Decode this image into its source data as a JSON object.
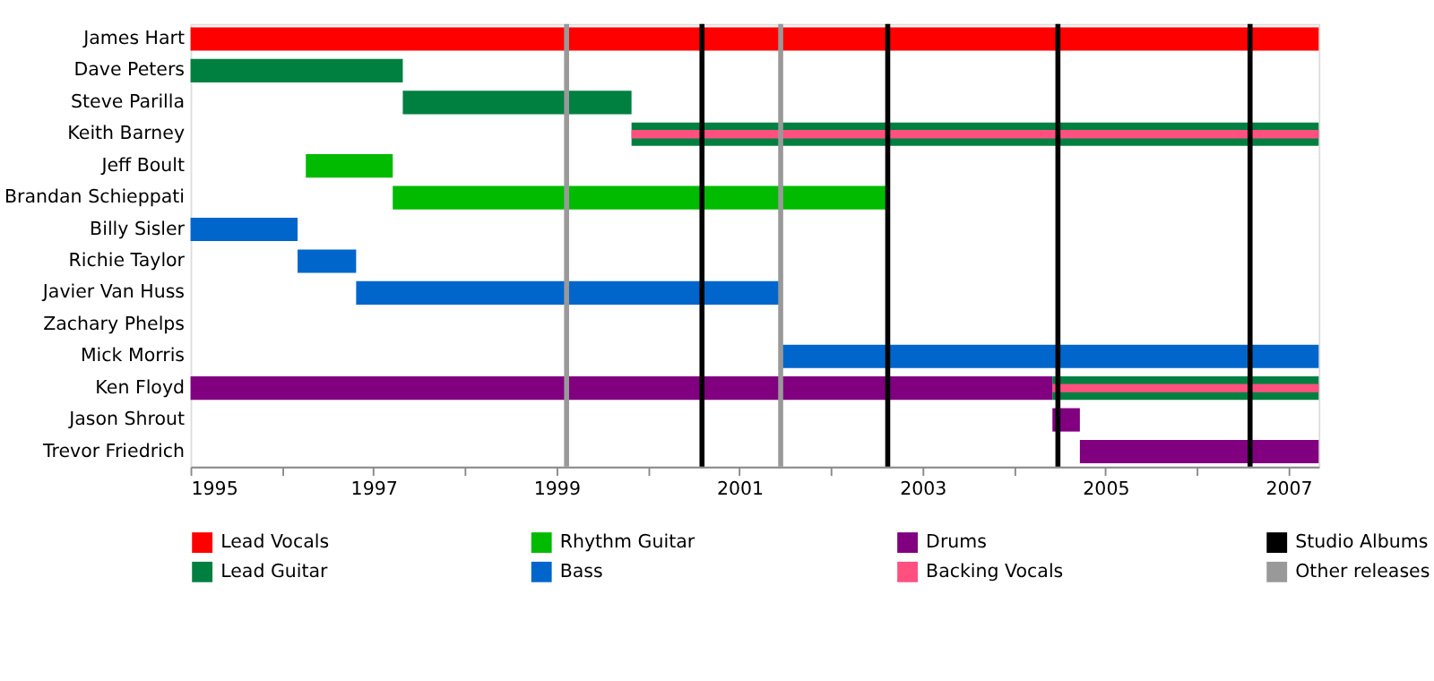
{
  "chart_data": {
    "type": "bar",
    "orientation": "horizontal",
    "categories": [
      "James Hart",
      "Dave Peters",
      "Steve Parilla",
      "Keith Barney",
      "Jeff Boult",
      "Brandan Schieppati",
      "Billy Sisler",
      "Richie Taylor",
      "Javier Van Huss",
      "Zachary Phelps",
      "Mick Morris",
      "Ken Floyd",
      "Jason Shrout",
      "Trevor Friedrich"
    ],
    "series": [
      {
        "name": "Lead Vocals",
        "color": "#ff0000",
        "base": [
          1995,
          null,
          null,
          null,
          null,
          null,
          null,
          null,
          null,
          null,
          null,
          null,
          null,
          null
        ],
        "values": [
          12.33,
          null,
          null,
          null,
          null,
          null,
          null,
          null,
          null,
          null,
          null,
          null,
          null,
          null
        ]
      },
      {
        "name": "Lead Guitar",
        "color": "#008040",
        "base": [
          null,
          1995,
          1997.32,
          1999.82,
          null,
          null,
          null,
          null,
          null,
          null,
          null,
          2004.42,
          null,
          null
        ],
        "values": [
          null,
          2.32,
          2.5,
          7.51,
          null,
          null,
          null,
          null,
          null,
          null,
          null,
          2.91,
          null,
          null
        ]
      },
      {
        "name": "Rhythm Guitar",
        "color": "#00bb00",
        "base": [
          null,
          null,
          null,
          null,
          1996.26,
          1997.21,
          null,
          null,
          null,
          null,
          null,
          null,
          null,
          null
        ],
        "values": [
          null,
          null,
          null,
          null,
          0.95,
          5.41,
          null,
          null,
          null,
          null,
          null,
          null,
          null,
          null
        ]
      },
      {
        "name": "Bass",
        "color": "#0066cc",
        "base": [
          null,
          null,
          null,
          null,
          null,
          null,
          1995,
          1996.17,
          1996.81,
          null,
          2001.45,
          null,
          null,
          null
        ],
        "values": [
          null,
          null,
          null,
          null,
          null,
          null,
          1.17,
          0.64,
          4.64,
          null,
          5.88,
          null,
          null,
          null
        ]
      },
      {
        "name": "Drums",
        "color": "#800080",
        "base": [
          null,
          null,
          null,
          null,
          null,
          null,
          null,
          null,
          null,
          null,
          null,
          1995,
          2004.42,
          2004.72
        ],
        "values": [
          null,
          null,
          null,
          null,
          null,
          null,
          null,
          null,
          null,
          null,
          null,
          9.42,
          0.3,
          2.61
        ]
      },
      {
        "name": "Backing Vocals",
        "color": "#ff5080",
        "base": [
          null,
          null,
          null,
          1999.82,
          null,
          null,
          null,
          null,
          null,
          null,
          null,
          2004.42,
          null,
          null
        ],
        "values": [
          null,
          null,
          null,
          7.51,
          null,
          null,
          null,
          null,
          null,
          null,
          null,
          2.91,
          null,
          null
        ]
      }
    ],
    "ref_lines": [
      {
        "axis": "x",
        "value": 2000.59,
        "label": "Studio Albums",
        "color": "#000000"
      },
      {
        "axis": "x",
        "value": 2002.62,
        "color": "#000000"
      },
      {
        "axis": "x",
        "value": 2004.48,
        "color": "#000000"
      },
      {
        "axis": "x",
        "value": 2006.58,
        "color": "#000000"
      },
      {
        "axis": "x",
        "value": 1999.11,
        "label": "Other releases",
        "color": "#999999"
      },
      {
        "axis": "x",
        "value": 2001.45,
        "color": "#999999"
      }
    ],
    "xlim": [
      1995,
      2007.33
    ],
    "xticks": [
      1995,
      {
        "value": 1996,
        "label": null
      },
      1997,
      {
        "value": 1998,
        "label": null
      },
      1999,
      {
        "value": 2000,
        "label": null
      },
      2001,
      {
        "value": 2002,
        "label": null
      },
      2003,
      {
        "value": 2004,
        "label": null
      },
      2005,
      {
        "value": 2006,
        "label": null
      },
      2007
    ],
    "grid": false,
    "legend": "bottom"
  }
}
